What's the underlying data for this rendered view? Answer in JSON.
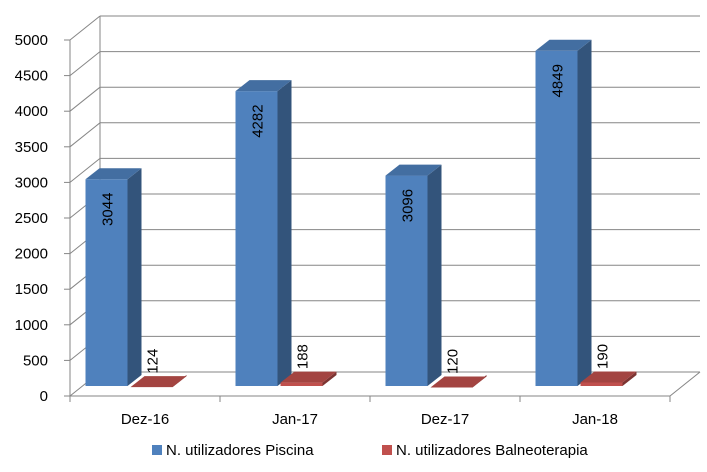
{
  "chart_data": {
    "type": "bar",
    "style": "3d-clustered-column",
    "categories": [
      "Dez-16",
      "Jan-17",
      "Dez-17",
      "Jan-18"
    ],
    "series": [
      {
        "name": "N. utilizadores Piscina",
        "values": [
          3044,
          4282,
          3096,
          4849
        ],
        "color": "#4F81BD"
      },
      {
        "name": "N. utilizadores Balneoterapia",
        "values": [
          124,
          188,
          120,
          190
        ],
        "color": "#C0504D"
      }
    ],
    "yticks": [
      0,
      500,
      1000,
      1500,
      2000,
      2500,
      3000,
      3500,
      4000,
      4500,
      5000
    ],
    "ylim": [
      0,
      5000
    ],
    "grid": true,
    "legend_position": "bottom",
    "data_labels": true
  }
}
